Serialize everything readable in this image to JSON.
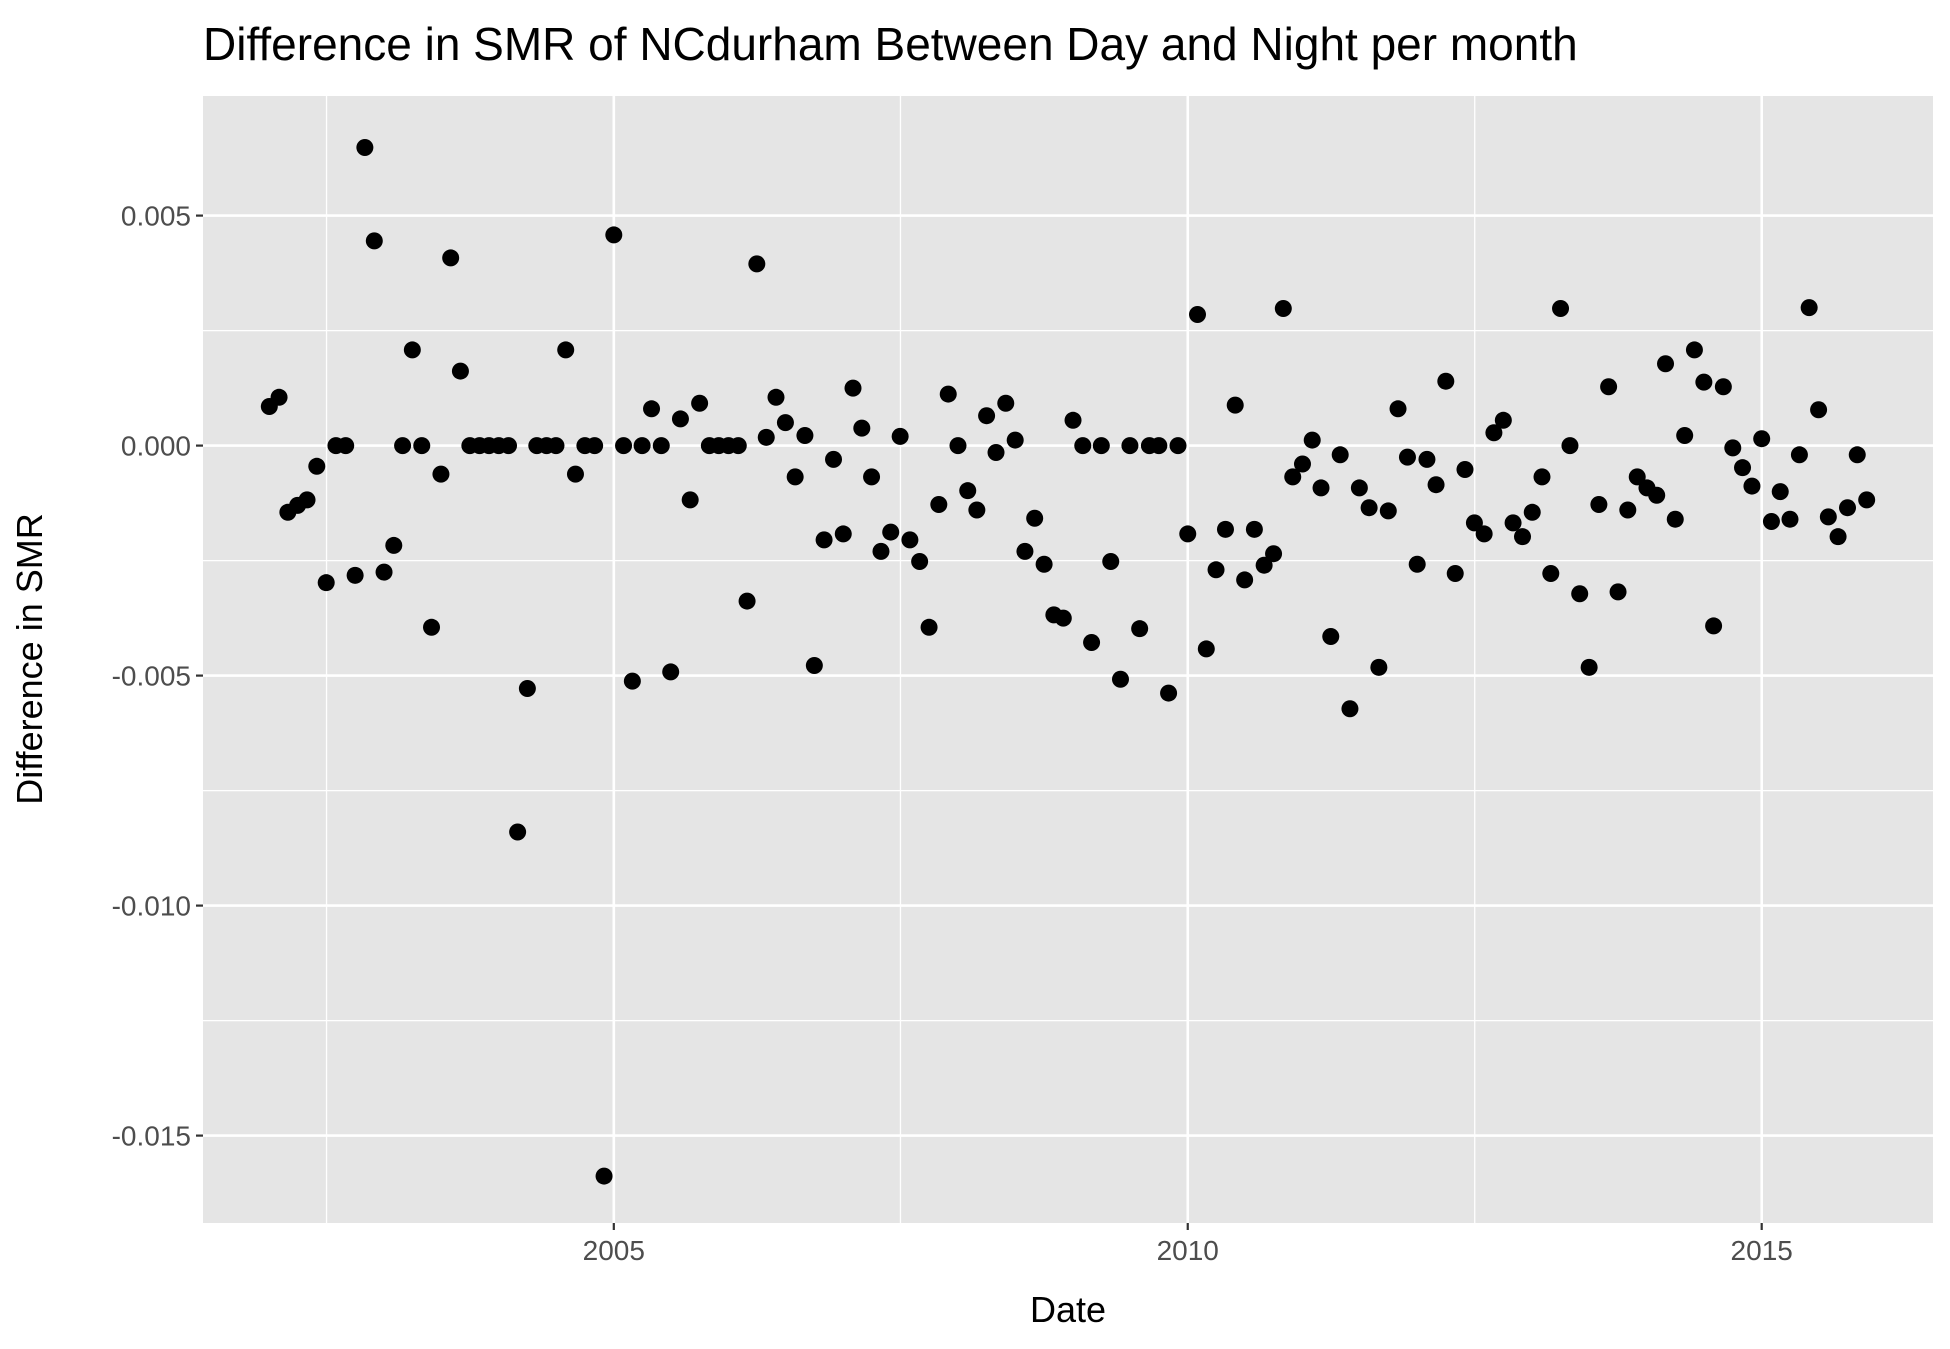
{
  "chart_data": {
    "type": "scatter",
    "title": "Difference in SMR of NCdurham Between Day and Night per month",
    "xlabel": "Date",
    "ylabel": "Difference in SMR",
    "x_type": "date",
    "xlim": [
      "2001-06-04",
      "2016-06-29"
    ],
    "ylim": [
      -0.0169,
      0.0076
    ],
    "x_ticks": [
      {
        "value": "2005-01-01",
        "label": "2005"
      },
      {
        "value": "2010-01-01",
        "label": "2010"
      },
      {
        "value": "2015-01-01",
        "label": "2015"
      }
    ],
    "x_minor_ticks": [
      "2002-07-02",
      "2007-07-02",
      "2012-07-02"
    ],
    "y_ticks": [
      {
        "value": 0.005,
        "label": "0.005"
      },
      {
        "value": 0.0,
        "label": "0.000"
      },
      {
        "value": -0.005,
        "label": "-0.005"
      },
      {
        "value": -0.01,
        "label": "-0.010"
      },
      {
        "value": -0.015,
        "label": "-0.015"
      }
    ],
    "y_minor_ticks": [
      0.0025,
      -0.0025,
      -0.0075,
      -0.0125
    ],
    "grid": true,
    "colors": {
      "panel": "#e5e5e5",
      "grid": "#ffffff",
      "point": "#000000"
    },
    "points": [
      {
        "x": "2002-01-01",
        "y": 0.00085
      },
      {
        "x": "2002-02-01",
        "y": 0.00105
      },
      {
        "x": "2002-03-01",
        "y": -0.00145
      },
      {
        "x": "2002-04-01",
        "y": -0.0013
      },
      {
        "x": "2002-05-01",
        "y": -0.00118
      },
      {
        "x": "2002-06-01",
        "y": -0.00045
      },
      {
        "x": "2002-07-01",
        "y": -0.00298
      },
      {
        "x": "2002-08-01",
        "y": 0.0
      },
      {
        "x": "2002-09-01",
        "y": 0.0
      },
      {
        "x": "2002-10-01",
        "y": -0.00282
      },
      {
        "x": "2002-11-01",
        "y": 0.00648
      },
      {
        "x": "2002-12-01",
        "y": 0.00445
      },
      {
        "x": "2003-01-01",
        "y": -0.00275
      },
      {
        "x": "2003-02-01",
        "y": -0.00217
      },
      {
        "x": "2003-03-01",
        "y": 0.0
      },
      {
        "x": "2003-04-01",
        "y": 0.00208
      },
      {
        "x": "2003-05-01",
        "y": 0.0
      },
      {
        "x": "2003-06-01",
        "y": -0.00395
      },
      {
        "x": "2003-07-01",
        "y": -0.00062
      },
      {
        "x": "2003-08-01",
        "y": 0.00408
      },
      {
        "x": "2003-09-01",
        "y": 0.00162
      },
      {
        "x": "2003-10-01",
        "y": 0.0
      },
      {
        "x": "2003-11-01",
        "y": 0.0
      },
      {
        "x": "2003-12-01",
        "y": 0.0
      },
      {
        "x": "2004-01-01",
        "y": 0.0
      },
      {
        "x": "2004-02-01",
        "y": 0.0
      },
      {
        "x": "2004-03-01",
        "y": -0.0084
      },
      {
        "x": "2004-04-01",
        "y": -0.00528
      },
      {
        "x": "2004-05-01",
        "y": 0.0
      },
      {
        "x": "2004-06-01",
        "y": 0.0
      },
      {
        "x": "2004-07-01",
        "y": 0.0
      },
      {
        "x": "2004-08-01",
        "y": 0.00208
      },
      {
        "x": "2004-09-01",
        "y": -0.00062
      },
      {
        "x": "2004-10-01",
        "y": 0.0
      },
      {
        "x": "2004-11-01",
        "y": 0.0
      },
      {
        "x": "2004-12-01",
        "y": -0.01588
      },
      {
        "x": "2005-01-01",
        "y": 0.00458
      },
      {
        "x": "2005-02-01",
        "y": 0.0
      },
      {
        "x": "2005-03-01",
        "y": -0.00512
      },
      {
        "x": "2005-04-01",
        "y": 0.0
      },
      {
        "x": "2005-05-01",
        "y": 0.0008
      },
      {
        "x": "2005-06-01",
        "y": 0.0
      },
      {
        "x": "2005-07-01",
        "y": -0.00492
      },
      {
        "x": "2005-08-01",
        "y": 0.00058
      },
      {
        "x": "2005-09-01",
        "y": -0.00118
      },
      {
        "x": "2005-10-01",
        "y": 0.00092
      },
      {
        "x": "2005-11-01",
        "y": 0.0
      },
      {
        "x": "2005-12-01",
        "y": 0.0
      },
      {
        "x": "2006-01-01",
        "y": 0.0
      },
      {
        "x": "2006-02-01",
        "y": 0.0
      },
      {
        "x": "2006-03-01",
        "y": -0.00338
      },
      {
        "x": "2006-04-01",
        "y": 0.00395
      },
      {
        "x": "2006-05-01",
        "y": 0.00018
      },
      {
        "x": "2006-06-01",
        "y": 0.00105
      },
      {
        "x": "2006-07-01",
        "y": 0.0005
      },
      {
        "x": "2006-08-01",
        "y": -0.00068
      },
      {
        "x": "2006-09-01",
        "y": 0.00022
      },
      {
        "x": "2006-10-01",
        "y": -0.00478
      },
      {
        "x": "2006-11-01",
        "y": -0.00205
      },
      {
        "x": "2006-12-01",
        "y": -0.0003
      },
      {
        "x": "2007-01-01",
        "y": -0.00192
      },
      {
        "x": "2007-02-01",
        "y": 0.00125
      },
      {
        "x": "2007-03-01",
        "y": 0.00038
      },
      {
        "x": "2007-04-01",
        "y": -0.00068
      },
      {
        "x": "2007-05-01",
        "y": -0.0023
      },
      {
        "x": "2007-06-01",
        "y": -0.00188
      },
      {
        "x": "2007-07-01",
        "y": 0.0002
      },
      {
        "x": "2007-08-01",
        "y": -0.00205
      },
      {
        "x": "2007-09-01",
        "y": -0.00252
      },
      {
        "x": "2007-10-01",
        "y": -0.00395
      },
      {
        "x": "2007-11-01",
        "y": -0.00128
      },
      {
        "x": "2007-12-01",
        "y": 0.00112
      },
      {
        "x": "2008-01-01",
        "y": 0.0
      },
      {
        "x": "2008-02-01",
        "y": -0.00098
      },
      {
        "x": "2008-03-01",
        "y": -0.0014
      },
      {
        "x": "2008-04-01",
        "y": 0.00065
      },
      {
        "x": "2008-05-01",
        "y": -0.00015
      },
      {
        "x": "2008-06-01",
        "y": 0.00092
      },
      {
        "x": "2008-07-01",
        "y": 0.00012
      },
      {
        "x": "2008-08-01",
        "y": -0.0023
      },
      {
        "x": "2008-09-01",
        "y": -0.00158
      },
      {
        "x": "2008-10-01",
        "y": -0.00258
      },
      {
        "x": "2008-11-01",
        "y": -0.00368
      },
      {
        "x": "2008-12-01",
        "y": -0.00375
      },
      {
        "x": "2009-01-01",
        "y": 0.00055
      },
      {
        "x": "2009-02-01",
        "y": 0.0
      },
      {
        "x": "2009-03-01",
        "y": -0.00428
      },
      {
        "x": "2009-04-01",
        "y": 0.0
      },
      {
        "x": "2009-05-01",
        "y": -0.00252
      },
      {
        "x": "2009-06-01",
        "y": -0.00508
      },
      {
        "x": "2009-07-01",
        "y": 0.0
      },
      {
        "x": "2009-08-01",
        "y": -0.00398
      },
      {
        "x": "2009-09-01",
        "y": 0.0
      },
      {
        "x": "2009-10-01",
        "y": 0.0
      },
      {
        "x": "2009-11-01",
        "y": -0.00538
      },
      {
        "x": "2009-12-01",
        "y": 0.0
      },
      {
        "x": "2010-01-01",
        "y": -0.00192
      },
      {
        "x": "2010-02-01",
        "y": 0.00285
      },
      {
        "x": "2010-03-01",
        "y": -0.00442
      },
      {
        "x": "2010-04-01",
        "y": -0.0027
      },
      {
        "x": "2010-05-01",
        "y": -0.00182
      },
      {
        "x": "2010-06-01",
        "y": 0.00088
      },
      {
        "x": "2010-07-01",
        "y": -0.00292
      },
      {
        "x": "2010-08-01",
        "y": -0.00182
      },
      {
        "x": "2010-09-01",
        "y": -0.0026
      },
      {
        "x": "2010-10-01",
        "y": -0.00235
      },
      {
        "x": "2010-11-01",
        "y": 0.00298
      },
      {
        "x": "2010-12-01",
        "y": -0.00068
      },
      {
        "x": "2011-01-01",
        "y": -0.0004
      },
      {
        "x": "2011-02-01",
        "y": 0.00012
      },
      {
        "x": "2011-03-01",
        "y": -0.00092
      },
      {
        "x": "2011-04-01",
        "y": -0.00415
      },
      {
        "x": "2011-05-01",
        "y": -0.0002
      },
      {
        "x": "2011-06-01",
        "y": -0.00572
      },
      {
        "x": "2011-07-01",
        "y": -0.00092
      },
      {
        "x": "2011-08-01",
        "y": -0.00135
      },
      {
        "x": "2011-09-01",
        "y": -0.00482
      },
      {
        "x": "2011-10-01",
        "y": -0.00142
      },
      {
        "x": "2011-11-01",
        "y": 0.0008
      },
      {
        "x": "2011-12-01",
        "y": -0.00025
      },
      {
        "x": "2012-01-01",
        "y": -0.00258
      },
      {
        "x": "2012-02-01",
        "y": -0.0003
      },
      {
        "x": "2012-03-01",
        "y": -0.00085
      },
      {
        "x": "2012-04-01",
        "y": 0.0014
      },
      {
        "x": "2012-05-01",
        "y": -0.00278
      },
      {
        "x": "2012-06-01",
        "y": -0.00052
      },
      {
        "x": "2012-07-01",
        "y": -0.00168
      },
      {
        "x": "2012-08-01",
        "y": -0.00192
      },
      {
        "x": "2012-09-01",
        "y": 0.00028
      },
      {
        "x": "2012-10-01",
        "y": 0.00055
      },
      {
        "x": "2012-11-01",
        "y": -0.00168
      },
      {
        "x": "2012-12-01",
        "y": -0.00198
      },
      {
        "x": "2013-01-01",
        "y": -0.00145
      },
      {
        "x": "2013-02-01",
        "y": -0.00068
      },
      {
        "x": "2013-03-01",
        "y": -0.00278
      },
      {
        "x": "2013-04-01",
        "y": 0.00298
      },
      {
        "x": "2013-05-01",
        "y": 0.0
      },
      {
        "x": "2013-06-01",
        "y": -0.00322
      },
      {
        "x": "2013-07-01",
        "y": -0.00482
      },
      {
        "x": "2013-08-01",
        "y": -0.00128
      },
      {
        "x": "2013-09-01",
        "y": 0.00128
      },
      {
        "x": "2013-10-01",
        "y": -0.00318
      },
      {
        "x": "2013-11-01",
        "y": -0.0014
      },
      {
        "x": "2013-12-01",
        "y": -0.00068
      },
      {
        "x": "2014-01-01",
        "y": -0.00092
      },
      {
        "x": "2014-02-01",
        "y": -0.00108
      },
      {
        "x": "2014-03-01",
        "y": 0.00178
      },
      {
        "x": "2014-04-01",
        "y": -0.0016
      },
      {
        "x": "2014-05-01",
        "y": 0.00022
      },
      {
        "x": "2014-06-01",
        "y": 0.00208
      },
      {
        "x": "2014-07-01",
        "y": 0.00138
      },
      {
        "x": "2014-08-01",
        "y": -0.00392
      },
      {
        "x": "2014-09-01",
        "y": 0.00128
      },
      {
        "x": "2014-10-01",
        "y": -5e-05
      },
      {
        "x": "2014-11-01",
        "y": -0.00048
      },
      {
        "x": "2014-12-01",
        "y": -0.00088
      },
      {
        "x": "2015-01-01",
        "y": 0.00015
      },
      {
        "x": "2015-02-01",
        "y": -0.00165
      },
      {
        "x": "2015-03-01",
        "y": -0.001
      },
      {
        "x": "2015-04-01",
        "y": -0.0016
      },
      {
        "x": "2015-05-01",
        "y": -0.0002
      },
      {
        "x": "2015-06-01",
        "y": 0.003
      },
      {
        "x": "2015-07-01",
        "y": 0.00078
      },
      {
        "x": "2015-08-01",
        "y": -0.00155
      },
      {
        "x": "2015-09-01",
        "y": -0.00198
      },
      {
        "x": "2015-10-01",
        "y": -0.00135
      },
      {
        "x": "2015-11-01",
        "y": -0.0002
      },
      {
        "x": "2015-12-01",
        "y": -0.00118
      }
    ]
  }
}
